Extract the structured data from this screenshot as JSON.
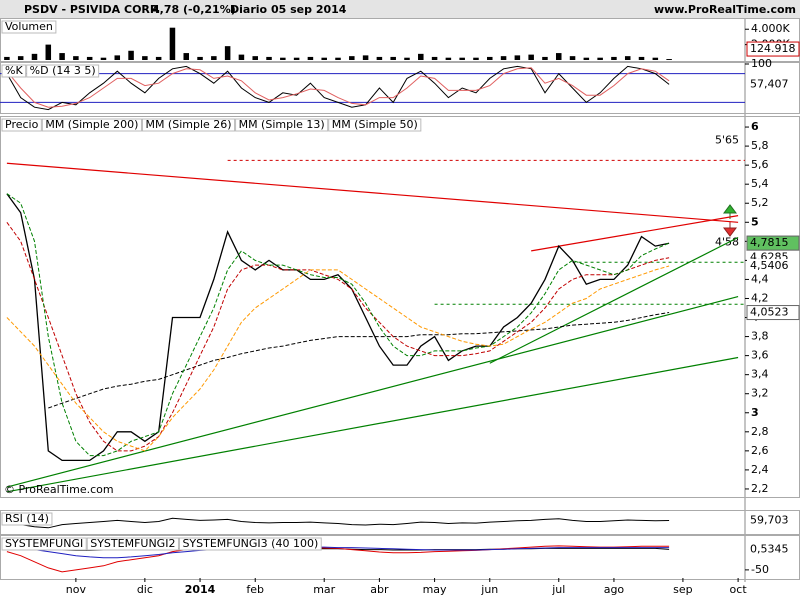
{
  "header": {
    "title": "PSDV - PSIVIDA CORP.",
    "quote": "4,78 (-0,21%)",
    "period": "Diario",
    "date": "05 sep 2014",
    "source": "www.ProRealTime.com"
  },
  "chart_data": [
    {
      "type": "bar",
      "title": "Volumen",
      "color": "#000000",
      "ylim": [
        0,
        5200000
      ],
      "yticks": [
        {
          "value": 4000000,
          "label": "4.000K"
        },
        {
          "value": 2000000,
          "label": "2.000K"
        }
      ],
      "values": [
        400000,
        500000,
        800000,
        2000000,
        900000,
        500000,
        400000,
        300000,
        600000,
        1200000,
        500000,
        400000,
        4200000,
        900000,
        400000,
        500000,
        1800000,
        700000,
        500000,
        400000,
        300000,
        300000,
        400000,
        300000,
        300000,
        500000,
        600000,
        400000,
        400000,
        300000,
        800000,
        400000,
        300000,
        300000,
        300000,
        400000,
        500000,
        600000,
        700000,
        400000,
        900000,
        500000,
        300000,
        300000,
        400000,
        500000,
        400000,
        300000,
        124918,
        null,
        null,
        null,
        null,
        null
      ],
      "last_label": "124.918"
    },
    {
      "type": "line",
      "ylim": [
        0,
        100
      ],
      "yticks": [
        100
      ],
      "levels": [
        {
          "value": 80,
          "color": "#2020c0"
        },
        {
          "value": 20,
          "color": "#2020c0"
        }
      ],
      "series": [
        {
          "name": "%K",
          "color": "#000000",
          "values": [
            80,
            30,
            10,
            5,
            20,
            15,
            40,
            60,
            85,
            60,
            40,
            70,
            90,
            95,
            80,
            60,
            85,
            50,
            30,
            20,
            40,
            35,
            60,
            30,
            20,
            10,
            15,
            50,
            20,
            70,
            85,
            60,
            30,
            50,
            40,
            70,
            90,
            95,
            90,
            40,
            80,
            50,
            20,
            40,
            70,
            95,
            90,
            80,
            57.407,
            null,
            null,
            null,
            null,
            null
          ],
          "last_label": "57,407"
        },
        {
          "name": "%D (14 3 5)",
          "color": "#e06060",
          "values": [
            85,
            50,
            20,
            10,
            12,
            18,
            30,
            50,
            70,
            70,
            55,
            60,
            80,
            90,
            88,
            70,
            75,
            65,
            40,
            25,
            30,
            38,
            48,
            45,
            30,
            18,
            15,
            30,
            30,
            50,
            75,
            70,
            45,
            45,
            45,
            55,
            80,
            90,
            92,
            60,
            70,
            55,
            35,
            35,
            55,
            80,
            90,
            85,
            65,
            null,
            null,
            null,
            null,
            null
          ]
        }
      ]
    },
    {
      "type": "line",
      "credit": "© ProRealTime.com",
      "categories": [
        null,
        null,
        null,
        null,
        null,
        "nov",
        null,
        null,
        null,
        null,
        "dic",
        null,
        null,
        null,
        "2014",
        null,
        null,
        null,
        "feb",
        null,
        null,
        null,
        null,
        "mar",
        null,
        null,
        null,
        "abr",
        null,
        null,
        null,
        "may",
        null,
        null,
        null,
        "jun",
        null,
        null,
        null,
        null,
        "jul",
        null,
        null,
        null,
        "ago",
        null,
        null,
        null,
        null,
        "sep",
        null,
        null,
        null,
        "oct"
      ],
      "ylim": [
        2.126,
        6.095
      ],
      "yticks": [
        6,
        {
          "value": 5.8,
          "label": "5,8"
        },
        {
          "value": 5.6,
          "label": "5,6"
        },
        {
          "value": 5.4,
          "label": "5,4"
        },
        {
          "value": 5.2,
          "label": "5,2"
        },
        5,
        {
          "value": 4.8,
          "label": "4,8"
        },
        {
          "value": 4.6,
          "label": "4,6"
        },
        {
          "value": 4.4,
          "label": "4,4"
        },
        {
          "value": 4.2,
          "label": "4,2"
        },
        4,
        {
          "value": 3.8,
          "label": "3,8"
        },
        {
          "value": 3.6,
          "label": "3,6"
        },
        {
          "value": 3.4,
          "label": "3,4"
        },
        {
          "value": 3.2,
          "label": "3,2"
        },
        3,
        {
          "value": 2.8,
          "label": "2,8"
        },
        {
          "value": 2.6,
          "label": "2,6"
        },
        {
          "value": 2.4,
          "label": "2,4"
        },
        {
          "value": 2.2,
          "label": "2,2"
        }
      ],
      "levels": [
        {
          "value": 5.65,
          "label": "5'65",
          "color": "#d00000",
          "from": 16
        },
        {
          "value": 4.58,
          "label": "4'58",
          "color": "#008000",
          "from": 41
        },
        {
          "value": 4.14,
          "color": "#008000",
          "from": 31
        }
      ],
      "trendlines": [
        {
          "color": "#e00000",
          "from": [
            0,
            5.62
          ],
          "to": [
            53,
            5.0
          ]
        },
        {
          "color": "#e00000",
          "from": [
            38,
            4.7
          ],
          "to": [
            53,
            5.07
          ]
        },
        {
          "color": "#008000",
          "from": [
            0,
            2.17
          ],
          "to": [
            53,
            3.58
          ]
        },
        {
          "color": "#008000",
          "from": [
            0,
            2.22
          ],
          "to": [
            53,
            4.22
          ]
        },
        {
          "color": "#008000",
          "from": [
            35,
            3.52
          ],
          "to": [
            53,
            4.84
          ]
        }
      ],
      "series": [
        {
          "name": "Precio",
          "color": "#000000",
          "values": [
            5.3,
            5.1,
            4.4,
            2.6,
            2.5,
            2.5,
            2.5,
            2.6,
            2.8,
            2.8,
            2.7,
            2.8,
            4.0,
            4.0,
            4.0,
            4.4,
            4.9,
            4.6,
            4.5,
            4.6,
            4.5,
            4.5,
            4.4,
            4.4,
            4.45,
            4.3,
            4.0,
            3.7,
            3.5,
            3.5,
            3.7,
            3.8,
            3.55,
            3.65,
            3.7,
            3.7,
            3.9,
            4.0,
            4.15,
            4.4,
            4.75,
            4.6,
            4.35,
            4.4,
            4.4,
            4.55,
            4.85,
            4.75,
            4.78,
            null,
            null,
            null,
            null,
            null
          ],
          "last_label": "4,78",
          "box": "#ffcc00"
        },
        {
          "name": "MM (Simple 200)",
          "color": "#000000",
          "dash": true,
          "values": [
            null,
            null,
            null,
            3.05,
            3.1,
            3.15,
            3.2,
            3.25,
            3.28,
            3.3,
            3.33,
            3.35,
            3.4,
            3.45,
            3.5,
            3.55,
            3.58,
            3.62,
            3.65,
            3.68,
            3.7,
            3.73,
            3.76,
            3.78,
            3.8,
            3.8,
            3.8,
            3.8,
            3.8,
            3.8,
            3.82,
            3.82,
            3.82,
            3.83,
            3.83,
            3.84,
            3.85,
            3.86,
            3.87,
            3.88,
            3.9,
            3.92,
            3.93,
            3.94,
            3.95,
            3.97,
            4.0,
            4.03,
            4.0523,
            null,
            null,
            null,
            null,
            null
          ],
          "last_label": "4,0523",
          "box": "#ffffff"
        },
        {
          "name": "MM (Simple 26)",
          "color": "#c00000",
          "dash": true,
          "values": [
            5.0,
            4.8,
            4.4,
            4.0,
            3.6,
            3.2,
            2.9,
            2.7,
            2.6,
            2.6,
            2.65,
            2.75,
            3.0,
            3.3,
            3.6,
            3.9,
            4.3,
            4.5,
            4.55,
            4.55,
            4.5,
            4.5,
            4.5,
            4.45,
            4.4,
            4.3,
            4.1,
            3.95,
            3.8,
            3.7,
            3.65,
            3.6,
            3.6,
            3.6,
            3.62,
            3.65,
            3.75,
            3.85,
            3.95,
            4.1,
            4.3,
            4.4,
            4.45,
            4.45,
            4.45,
            4.5,
            4.55,
            4.6,
            4.6285,
            null,
            null,
            null,
            null,
            null
          ],
          "last_label": "4,6285"
        },
        {
          "name": "MM (Simple 13)",
          "color": "#008000",
          "dash": true,
          "values": [
            5.3,
            5.2,
            4.8,
            3.8,
            3.1,
            2.7,
            2.55,
            2.55,
            2.6,
            2.7,
            2.75,
            2.8,
            3.2,
            3.5,
            3.8,
            4.1,
            4.5,
            4.7,
            4.6,
            4.55,
            4.55,
            4.5,
            4.45,
            4.42,
            4.42,
            4.35,
            4.15,
            3.9,
            3.7,
            3.6,
            3.6,
            3.65,
            3.65,
            3.65,
            3.68,
            3.7,
            3.8,
            3.9,
            4.05,
            4.25,
            4.5,
            4.6,
            4.55,
            4.5,
            4.45,
            4.5,
            4.65,
            4.72,
            4.7815,
            null,
            null,
            null,
            null,
            null
          ],
          "last_label": "4,7815",
          "box": "#60c060"
        },
        {
          "name": "MM (Simple 50)",
          "color": "#ff9900",
          "dash": true,
          "values": [
            4.0,
            3.85,
            3.7,
            3.5,
            3.3,
            3.1,
            2.95,
            2.8,
            2.7,
            2.65,
            2.6,
            2.75,
            2.95,
            3.1,
            3.25,
            3.45,
            3.7,
            3.95,
            4.1,
            4.2,
            4.3,
            4.4,
            4.5,
            4.5,
            4.5,
            4.4,
            4.3,
            4.2,
            4.1,
            4.0,
            3.9,
            3.85,
            3.8,
            3.75,
            3.72,
            3.7,
            3.72,
            3.8,
            3.88,
            3.95,
            4.05,
            4.15,
            4.2,
            4.3,
            4.35,
            4.4,
            4.45,
            4.5,
            4.5406,
            null,
            null,
            null,
            null,
            null
          ],
          "last_label": "4,5406"
        }
      ]
    },
    {
      "type": "line",
      "title": "RSI (14)",
      "ylim": [
        0,
        100
      ],
      "series": [
        {
          "color": "#000000",
          "values": [
            55,
            40,
            30,
            25,
            40,
            45,
            50,
            55,
            60,
            55,
            50,
            55,
            70,
            65,
            60,
            62,
            65,
            55,
            50,
            48,
            50,
            50,
            52,
            48,
            45,
            40,
            38,
            42,
            40,
            45,
            52,
            50,
            45,
            48,
            47,
            52,
            55,
            58,
            60,
            65,
            68,
            60,
            55,
            55,
            58,
            62,
            60,
            58,
            59.703,
            null,
            null,
            null,
            null,
            null
          ],
          "last_label": "59,703"
        }
      ]
    },
    {
      "type": "line",
      "ylim": [
        -70,
        31
      ],
      "yticks": [
        -50
      ],
      "series": [
        {
          "name": "SYSTEMFUNGI",
          "color": "#000000",
          "values": [
            2,
            2,
            1,
            0,
            -1,
            -2,
            -2,
            -1,
            0,
            1,
            2,
            2,
            3,
            3,
            3,
            3,
            4,
            3,
            3,
            2,
            2,
            2,
            2,
            2,
            2,
            1,
            0,
            0,
            -1,
            -1,
            -1,
            0,
            0,
            0,
            0,
            1,
            1,
            2,
            2,
            3,
            3,
            3,
            3,
            3,
            3,
            3,
            3,
            3,
            0.5345,
            null,
            null,
            null,
            null,
            null
          ],
          "last_label": "0,5345"
        },
        {
          "name": "SYSTEMFUNGI2",
          "color": "#e00000",
          "values": [
            -5,
            -15,
            -30,
            -45,
            -55,
            -50,
            -45,
            -40,
            -30,
            -25,
            -20,
            -15,
            -5,
            0,
            5,
            8,
            10,
            10,
            8,
            6,
            5,
            5,
            5,
            4,
            3,
            0,
            -3,
            -6,
            -8,
            -8,
            -7,
            -5,
            -4,
            -3,
            -2,
            0,
            2,
            4,
            6,
            8,
            9,
            8,
            7,
            6,
            6,
            7,
            8,
            8,
            8,
            null,
            null,
            null,
            null,
            null
          ]
        },
        {
          "name": "SYSTEMFUNGI3 (40 100)",
          "color": "#2020c0",
          "values": [
            5,
            3,
            0,
            -5,
            -10,
            -15,
            -18,
            -20,
            -20,
            -18,
            -15,
            -12,
            -8,
            -5,
            -2,
            0,
            2,
            4,
            5,
            5,
            6,
            6,
            6,
            6,
            5,
            5,
            4,
            3,
            2,
            1,
            0,
            -1,
            -1,
            -1,
            -1,
            0,
            1,
            2,
            3,
            4,
            5,
            5,
            5,
            5,
            5,
            5,
            5,
            5,
            5,
            null,
            null,
            null,
            null,
            null
          ]
        }
      ]
    }
  ]
}
